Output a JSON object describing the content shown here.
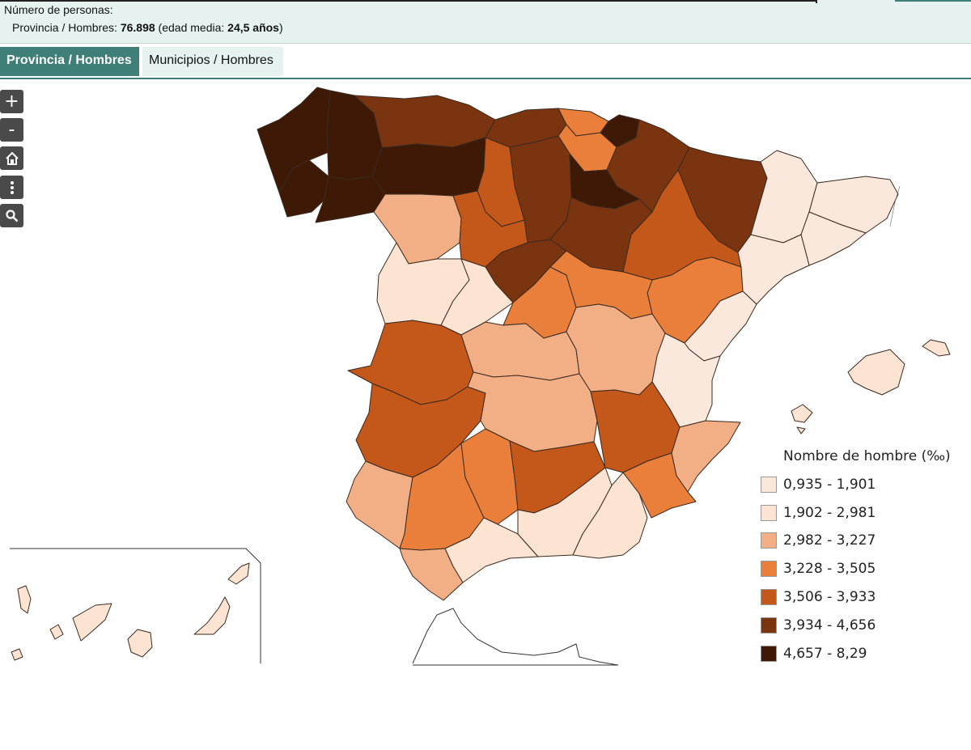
{
  "summary": {
    "label": "Número de personas:",
    "line_prefix": "Provincia / Hombres: ",
    "count": "76.898",
    "age_prefix": " (edad media: ",
    "age": "24,5 años",
    "age_suffix": ")"
  },
  "tabs": [
    {
      "label": "Provincia / Hombres",
      "active": true
    },
    {
      "label": "Municipios / Hombres",
      "active": false
    }
  ],
  "map_controls": {
    "zoom_in": "+",
    "zoom_out": "-",
    "home_icon": "home-icon",
    "more_icon": "more-vertical-icon",
    "search_icon": "search-icon"
  },
  "legend": {
    "title": "Nombre de hombre (‰)",
    "classes": [
      {
        "range": "0,935 - 1,901",
        "color": "#fbe8dc"
      },
      {
        "range": "1,902 - 2,981",
        "color": "#fde4d2"
      },
      {
        "range": "2,982 - 3,227",
        "color": "#f2ae84"
      },
      {
        "range": "3,228 - 3,505",
        "color": "#e97f3a"
      },
      {
        "range": "3,506 - 3,933",
        "color": "#c4571a"
      },
      {
        "range": "3,934 - 4,656",
        "color": "#7b3410"
      },
      {
        "range": "4,657 - 8,29",
        "color": "#3e1a06"
      }
    ]
  }
}
